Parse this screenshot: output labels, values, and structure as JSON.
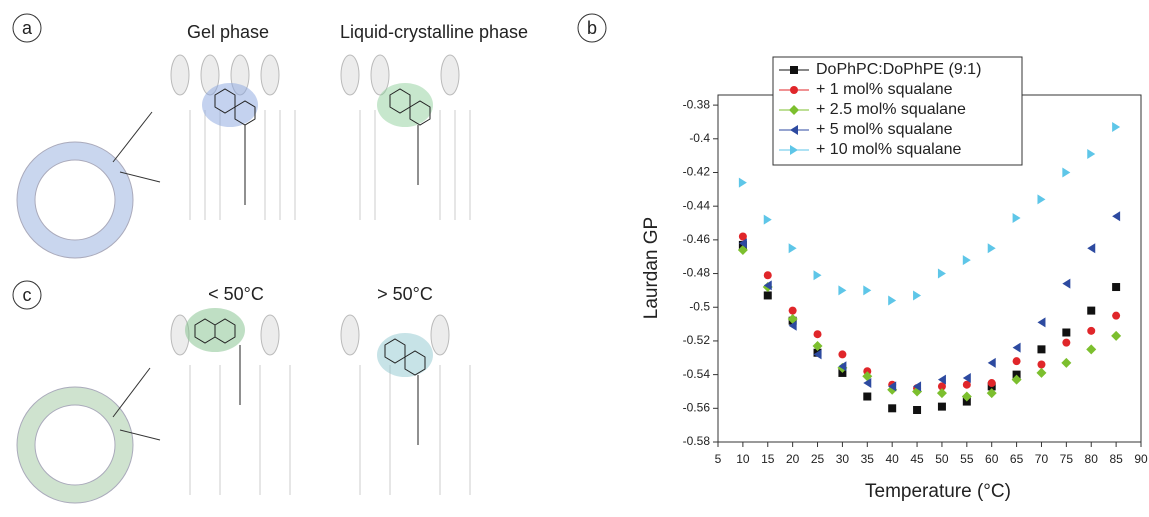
{
  "panels": {
    "a": {
      "label": "a",
      "left_title": "Gel phase",
      "right_title": "Liquid-crystalline phase"
    },
    "c": {
      "label": "c",
      "left_title": "< 50°C",
      "right_title": "> 50°C"
    },
    "b": {
      "label": "b"
    }
  },
  "chart_data": {
    "type": "scatter",
    "x_label": "Temperature (°C)",
    "y_label": "Laurdan GP",
    "x": [
      10,
      15,
      20,
      25,
      30,
      35,
      40,
      45,
      50,
      55,
      60,
      65,
      70,
      75,
      80,
      85
    ],
    "xlim": [
      5,
      90
    ],
    "xticks": [
      5,
      10,
      15,
      20,
      25,
      30,
      35,
      40,
      45,
      50,
      55,
      60,
      65,
      70,
      75,
      80,
      85,
      90
    ],
    "ylim": [
      -0.58,
      -0.374
    ],
    "yticks": [
      -0.58,
      -0.56,
      -0.54,
      -0.52,
      -0.5,
      -0.48,
      -0.46,
      -0.44,
      -0.42,
      -0.4,
      -0.38
    ],
    "series": [
      {
        "name": "DoPhPC:DoPhPE (9:1)",
        "color": "#111111",
        "marker": "square",
        "values": [
          -0.463,
          -0.493,
          -0.508,
          -0.527,
          -0.539,
          -0.553,
          -0.56,
          -0.561,
          -0.559,
          -0.556,
          -0.547,
          -0.54,
          -0.525,
          -0.515,
          -0.502,
          -0.488
        ]
      },
      {
        "name": "+ 1 mol% squalane",
        "color": "#e0262a",
        "marker": "circle",
        "values": [
          -0.458,
          -0.481,
          -0.502,
          -0.516,
          -0.528,
          -0.538,
          -0.546,
          -0.548,
          -0.547,
          -0.546,
          -0.545,
          -0.532,
          -0.534,
          -0.521,
          -0.514,
          -0.505
        ]
      },
      {
        "name": "+ 2.5 mol% squalane",
        "color": "#7cbf2e",
        "marker": "diamond",
        "values": [
          -0.466,
          -0.488,
          -0.507,
          -0.523,
          -0.536,
          -0.541,
          -0.549,
          -0.55,
          -0.551,
          -0.553,
          -0.551,
          -0.543,
          -0.539,
          -0.533,
          -0.525,
          -0.517
        ]
      },
      {
        "name": "+ 5 mol% squalane",
        "color": "#2d4aa0",
        "marker": "left",
        "values": [
          -0.462,
          -0.487,
          -0.511,
          -0.528,
          -0.535,
          -0.545,
          -0.547,
          -0.547,
          -0.543,
          -0.542,
          -0.533,
          -0.524,
          -0.509,
          -0.486,
          -0.465,
          -0.446
        ]
      },
      {
        "name": "+ 10 mol% squalane",
        "color": "#5ec6e8",
        "marker": "right",
        "values": [
          -0.426,
          -0.448,
          -0.465,
          -0.481,
          -0.49,
          -0.49,
          -0.496,
          -0.493,
          -0.48,
          -0.472,
          -0.465,
          -0.447,
          -0.436,
          -0.42,
          -0.409,
          -0.393
        ]
      }
    ]
  }
}
